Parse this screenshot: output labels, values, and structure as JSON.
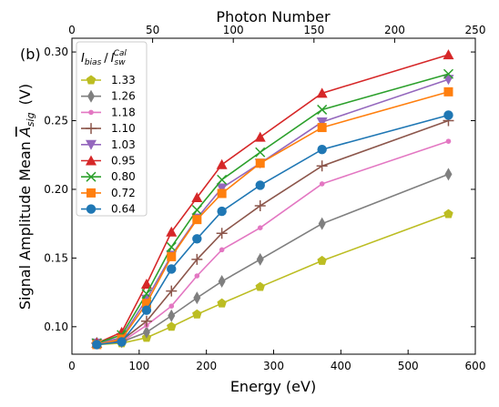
{
  "chart_data": {
    "type": "line",
    "panel_label": "(b)",
    "xlabel": "Energy (eV)",
    "ylabel": "Signal Amplitude Mean",
    "ylabel_symbol": "A",
    "ylabel_sub": "sig",
    "ylabel_unit": "(V)",
    "top_xlabel": "Photon Number",
    "xlim": [
      0,
      600
    ],
    "ylim": [
      0.08,
      0.31
    ],
    "top_xlim": [
      0,
      250
    ],
    "x_ticks": [
      0,
      100,
      200,
      300,
      400,
      500,
      600
    ],
    "y_ticks": [
      0.1,
      0.15,
      0.2,
      0.25,
      0.3
    ],
    "top_ticks": [
      0,
      50,
      100,
      150,
      200,
      250
    ],
    "grid": false,
    "legend": {
      "placement": "upper-left",
      "title_main": "I",
      "title_main_sub": "bias",
      "title_sep": "/",
      "title_second": "I",
      "title_second_sub": "sw",
      "title_second_sup": "Cal"
    },
    "x": [
      37,
      74,
      111,
      148,
      186,
      223,
      280,
      372,
      560
    ],
    "series": [
      {
        "name": "1.33",
        "color": "#bcbd22",
        "marker": "pentagon",
        "values": [
          0.087,
          0.088,
          0.092,
          0.1,
          0.109,
          0.117,
          0.129,
          0.148,
          0.182
        ]
      },
      {
        "name": "1.26",
        "color": "#7f7f7f",
        "marker": "thin-diamond",
        "values": [
          0.088,
          0.089,
          0.096,
          0.108,
          0.121,
          0.133,
          0.149,
          0.175,
          0.211
        ]
      },
      {
        "name": "1.18",
        "color": "#e377c2",
        "marker": "dot",
        "values": [
          0.088,
          0.089,
          0.101,
          0.115,
          0.137,
          0.156,
          0.172,
          0.204,
          0.235
        ]
      },
      {
        "name": "1.10",
        "color": "#8c564b",
        "marker": "plus",
        "values": [
          0.088,
          0.09,
          0.104,
          0.126,
          0.149,
          0.168,
          0.188,
          0.217,
          0.25
        ]
      },
      {
        "name": "1.03",
        "color": "#9467bd",
        "marker": "triangle-down",
        "values": [
          0.088,
          0.092,
          0.12,
          0.152,
          0.179,
          0.201,
          0.219,
          0.249,
          0.28
        ]
      },
      {
        "name": "0.95",
        "color": "#d62728",
        "marker": "triangle-up",
        "values": [
          0.088,
          0.096,
          0.131,
          0.169,
          0.194,
          0.218,
          0.238,
          0.27,
          0.298
        ]
      },
      {
        "name": "0.80",
        "color": "#2ca02c",
        "marker": "x",
        "values": [
          0.088,
          0.094,
          0.124,
          0.158,
          0.185,
          0.207,
          0.227,
          0.258,
          0.284
        ]
      },
      {
        "name": "0.72",
        "color": "#ff7f0e",
        "marker": "square",
        "values": [
          0.087,
          0.091,
          0.117,
          0.151,
          0.178,
          0.197,
          0.219,
          0.245,
          0.271
        ]
      },
      {
        "name": "0.64",
        "color": "#1f77b4",
        "marker": "circle",
        "values": [
          0.087,
          0.089,
          0.112,
          0.142,
          0.164,
          0.184,
          0.203,
          0.229,
          0.254
        ]
      }
    ]
  }
}
